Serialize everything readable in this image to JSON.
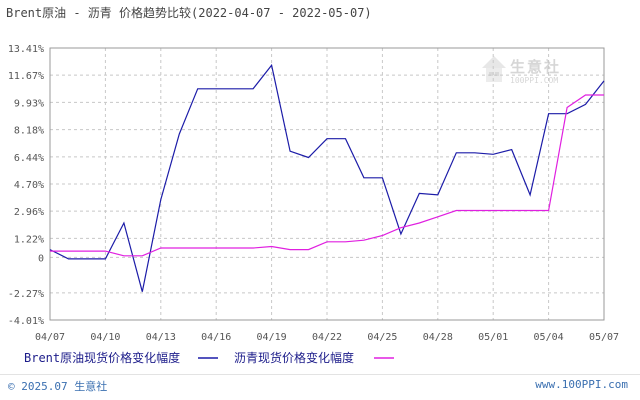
{
  "title": "Brent原油 - 沥青 价格趋势比较(2022-04-07 - 2022-05-07)",
  "copyright": "© 2025.07 生意社",
  "site": "www.100PPI.com",
  "watermark": {
    "text": "生意社",
    "sub": "100PPI.COM"
  },
  "colors": {
    "brent": "#1c1ca8",
    "asphalt": "#e020e0",
    "grid": "#c8c8c8",
    "axis": "#999999",
    "tick_text": "#555555"
  },
  "chart_data": {
    "type": "line",
    "title": "Brent原油 - 沥青 价格趋势比较(2022-04-07 - 2022-05-07)",
    "ylim": [
      -4.01,
      13.41
    ],
    "y_ticks": [
      13.41,
      11.67,
      9.93,
      8.18,
      6.44,
      4.7,
      2.96,
      1.22,
      0,
      -2.27,
      -4.01
    ],
    "y_tick_labels": [
      "13.41%",
      "11.67%",
      "9.93%",
      "8.18%",
      "6.44%",
      "4.70%",
      "2.96%",
      "1.22%",
      "0",
      "-2.27%",
      "-4.01%"
    ],
    "x_tick_labels": [
      "04/07",
      "04/10",
      "04/13",
      "04/16",
      "04/19",
      "04/22",
      "04/25",
      "04/28",
      "05/01",
      "05/04",
      "05/07"
    ],
    "x_tick_day_offsets": [
      0,
      3,
      6,
      9,
      12,
      15,
      18,
      21,
      24,
      27,
      30
    ],
    "grid": true,
    "legend_position": "bottom",
    "series": [
      {
        "name": "Brent原油现货价格变化幅度",
        "color": "#1c1ca8",
        "points": [
          [
            0,
            0.5
          ],
          [
            1,
            -0.1
          ],
          [
            2,
            -0.1
          ],
          [
            3,
            -0.1
          ],
          [
            4,
            2.2
          ],
          [
            5,
            -2.2
          ],
          [
            6,
            3.7
          ],
          [
            7,
            7.9
          ],
          [
            8,
            10.8
          ],
          [
            9,
            10.8
          ],
          [
            10,
            10.8
          ],
          [
            11,
            10.8
          ],
          [
            12,
            12.3
          ],
          [
            13,
            6.8
          ],
          [
            14,
            6.4
          ],
          [
            15,
            7.6
          ],
          [
            16,
            7.6
          ],
          [
            17,
            5.1
          ],
          [
            18,
            5.1
          ],
          [
            19,
            1.5
          ],
          [
            20,
            4.1
          ],
          [
            21,
            4.0
          ],
          [
            22,
            6.7
          ],
          [
            23,
            6.7
          ],
          [
            24,
            6.6
          ],
          [
            25,
            6.9
          ],
          [
            26,
            4.0
          ],
          [
            27,
            9.2
          ],
          [
            28,
            9.2
          ],
          [
            29,
            9.8
          ],
          [
            30,
            11.3
          ]
        ]
      },
      {
        "name": "沥青现货价格变化幅度",
        "color": "#e020e0",
        "points": [
          [
            0,
            0.4
          ],
          [
            1,
            0.4
          ],
          [
            2,
            0.4
          ],
          [
            3,
            0.4
          ],
          [
            4,
            0.1
          ],
          [
            5,
            0.1
          ],
          [
            6,
            0.6
          ],
          [
            7,
            0.6
          ],
          [
            8,
            0.6
          ],
          [
            9,
            0.6
          ],
          [
            10,
            0.6
          ],
          [
            11,
            0.6
          ],
          [
            12,
            0.7
          ],
          [
            13,
            0.5
          ],
          [
            14,
            0.5
          ],
          [
            15,
            1.0
          ],
          [
            16,
            1.0
          ],
          [
            17,
            1.1
          ],
          [
            18,
            1.4
          ],
          [
            19,
            1.9
          ],
          [
            20,
            2.2
          ],
          [
            21,
            2.6
          ],
          [
            22,
            3.0
          ],
          [
            23,
            3.0
          ],
          [
            24,
            3.0
          ],
          [
            25,
            3.0
          ],
          [
            26,
            3.0
          ],
          [
            27,
            3.0
          ],
          [
            28,
            9.6
          ],
          [
            29,
            10.4
          ],
          [
            30,
            10.4
          ]
        ]
      }
    ]
  }
}
